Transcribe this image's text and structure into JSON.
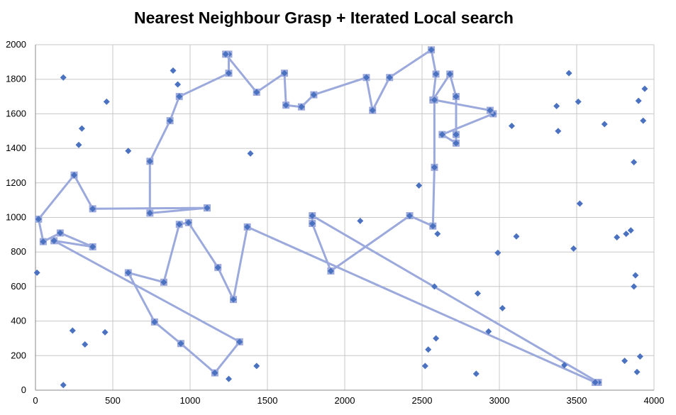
{
  "chart_data": {
    "type": "scatter",
    "title": "Nearest Neighbour Grasp + Iterated Local search",
    "xlim": [
      0,
      4000
    ],
    "ylim": [
      0,
      2000
    ],
    "xticks": [
      0,
      500,
      1000,
      1500,
      2000,
      2500,
      3000,
      3500,
      4000
    ],
    "yticks": [
      0,
      200,
      400,
      600,
      800,
      1000,
      1200,
      1400,
      1600,
      1800,
      2000
    ],
    "grid": true,
    "colors": {
      "route": "#9ba9dc",
      "point": "#4a72c0",
      "grid": "#c8c8c8",
      "axis": "#888888"
    },
    "points": [
      [
        10,
        680
      ],
      [
        180,
        1810
      ],
      [
        180,
        30
      ],
      [
        240,
        345
      ],
      [
        280,
        1420
      ],
      [
        300,
        1515
      ],
      [
        320,
        265
      ],
      [
        450,
        335
      ],
      [
        460,
        1670
      ],
      [
        600,
        1385
      ],
      [
        890,
        1850
      ],
      [
        920,
        1770
      ],
      [
        1250,
        65
      ],
      [
        1390,
        1370
      ],
      [
        1430,
        140
      ],
      [
        2100,
        980
      ],
      [
        2480,
        1185
      ],
      [
        2520,
        140
      ],
      [
        2540,
        235
      ],
      [
        2580,
        600
      ],
      [
        2590,
        300
      ],
      [
        2600,
        905
      ],
      [
        2850,
        95
      ],
      [
        2860,
        560
      ],
      [
        2930,
        340
      ],
      [
        2990,
        795
      ],
      [
        3020,
        475
      ],
      [
        3080,
        1530
      ],
      [
        3110,
        890
      ],
      [
        3370,
        1645
      ],
      [
        3380,
        1500
      ],
      [
        3420,
        145
      ],
      [
        3450,
        1835
      ],
      [
        3480,
        820
      ],
      [
        3510,
        1670
      ],
      [
        3520,
        1080
      ],
      [
        3680,
        1540
      ],
      [
        3760,
        885
      ],
      [
        3810,
        170
      ],
      [
        3820,
        905
      ],
      [
        3850,
        925
      ],
      [
        3870,
        1320
      ],
      [
        3870,
        600
      ],
      [
        3880,
        665
      ],
      [
        3890,
        105
      ],
      [
        3900,
        1675
      ],
      [
        3910,
        195
      ],
      [
        3930,
        1560
      ],
      [
        3940,
        1745
      ]
    ],
    "route": [
      [
        1110,
        1055
      ],
      [
        740,
        1025
      ],
      [
        740,
        1325
      ],
      [
        870,
        1560
      ],
      [
        930,
        1700
      ],
      [
        1250,
        1835
      ],
      [
        1250,
        1945
      ],
      [
        1230,
        1945
      ],
      [
        1430,
        1725
      ],
      [
        1610,
        1835
      ],
      [
        1620,
        1650
      ],
      [
        1720,
        1640
      ],
      [
        1800,
        1710
      ],
      [
        2140,
        1810
      ],
      [
        2180,
        1620
      ],
      [
        2290,
        1810
      ],
      [
        2560,
        1970
      ],
      [
        2590,
        1830
      ],
      [
        2570,
        1680
      ],
      [
        2680,
        1830
      ],
      [
        2720,
        1700
      ],
      [
        2720,
        1480
      ],
      [
        2720,
        1430
      ],
      [
        2630,
        1480
      ],
      [
        2960,
        1600
      ],
      [
        2940,
        1620
      ],
      [
        2580,
        1680
      ],
      [
        2580,
        1290
      ],
      [
        2570,
        950
      ],
      [
        2420,
        1010
      ],
      [
        1910,
        690
      ],
      [
        1790,
        965
      ],
      [
        1790,
        1010
      ],
      [
        3640,
        45
      ],
      [
        3620,
        45
      ],
      [
        1370,
        945
      ],
      [
        1280,
        525
      ],
      [
        1180,
        710
      ],
      [
        990,
        970
      ],
      [
        930,
        960
      ],
      [
        830,
        625
      ],
      [
        600,
        680
      ],
      [
        770,
        395
      ],
      [
        940,
        270
      ],
      [
        1160,
        100
      ],
      [
        1320,
        280
      ],
      [
        120,
        865
      ],
      [
        370,
        830
      ],
      [
        160,
        910
      ],
      [
        50,
        860
      ],
      [
        20,
        990
      ],
      [
        250,
        1245
      ],
      [
        370,
        1050
      ],
      [
        1110,
        1055
      ]
    ]
  }
}
